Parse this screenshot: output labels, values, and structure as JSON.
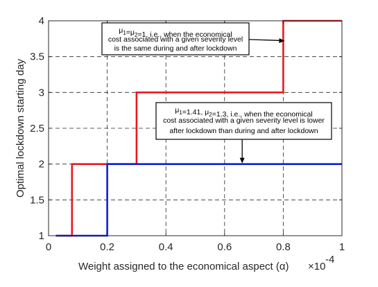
{
  "chart_data": {
    "type": "line",
    "step": true,
    "xlabel": "Weight assigned to the economical aspect (α)",
    "x_exponent": "×10",
    "x_exponent_power": "-4",
    "ylabel": "Optimal lockdown starting day",
    "xlim": [
      0,
      1
    ],
    "ylim": [
      1,
      4
    ],
    "x_ticks": [
      "0",
      "0.2",
      "0.4",
      "0.6",
      "0.8",
      "1"
    ],
    "y_ticks": [
      "1",
      "1.5",
      "2",
      "2.5",
      "3",
      "3.5",
      "4"
    ],
    "grid": true,
    "grid_style": "dashed",
    "series": [
      {
        "color": "#e8191c",
        "x": [
          0.025,
          0.08,
          0.08,
          0.3,
          0.3,
          0.8,
          0.8,
          1.0
        ],
        "y": [
          1,
          1,
          2,
          2,
          3,
          3,
          4,
          4
        ]
      },
      {
        "color": "#0a1fd6",
        "x": [
          0.025,
          0.2,
          0.2,
          1.0
        ],
        "y": [
          1,
          1,
          2,
          2
        ]
      }
    ],
    "annotations": [
      {
        "lines": [
          {
            "parts": [
              [
                "μ",
                ""
              ],
              [
                "1",
                "sub"
              ],
              [
                "=μ",
                ""
              ],
              [
                "2",
                "sub"
              ],
              [
                "=1, i.e., when the economical",
                ""
              ]
            ]
          },
          {
            "parts": [
              [
                "cost associated with a given severity level",
                ""
              ]
            ]
          },
          {
            "parts": [
              [
                "is the same during and after lockdown",
                ""
              ]
            ]
          }
        ],
        "arrow_to": [
          0.805,
          3.72
        ]
      },
      {
        "lines": [
          {
            "parts": [
              [
                "μ",
                ""
              ],
              [
                "1",
                "sub"
              ],
              [
                "=1.41, μ",
                ""
              ],
              [
                "2",
                "sub"
              ],
              [
                "=1.3, i.e., when the economical",
                ""
              ]
            ]
          },
          {
            "parts": [
              [
                "cost associated with a given severity level is lower",
                ""
              ]
            ]
          },
          {
            "parts": [
              [
                "after lockdown than during and after lockdown",
                ""
              ]
            ]
          }
        ],
        "arrow_to": [
          0.66,
          2.0
        ]
      }
    ]
  }
}
